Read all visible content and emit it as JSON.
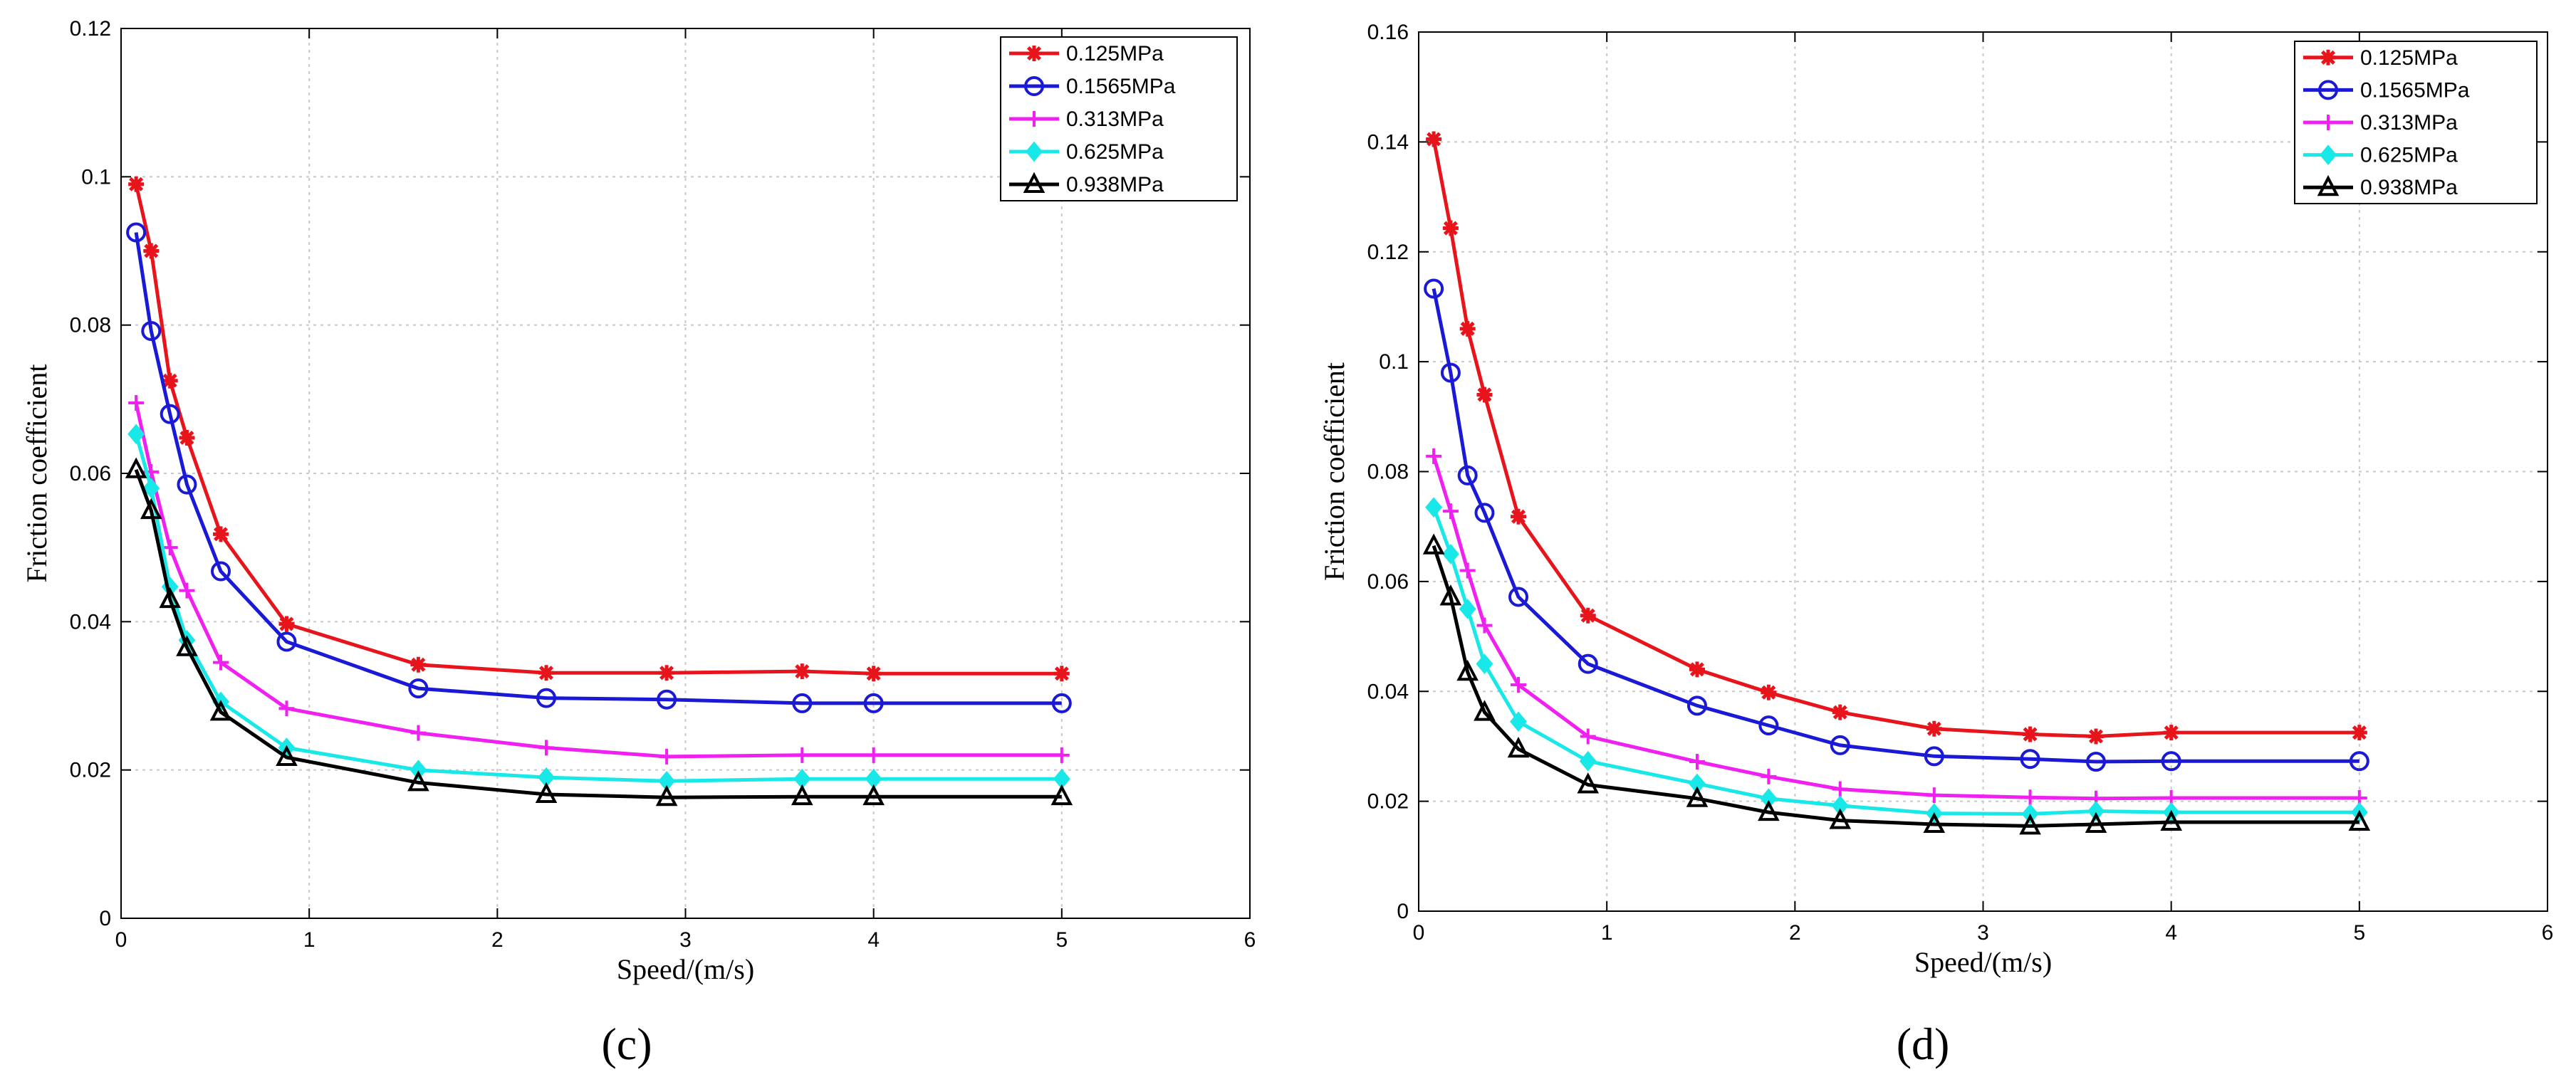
{
  "chart_data": [
    {
      "type": "line",
      "panel_label": "(c)",
      "xlabel": "Speed/(m/s)",
      "ylabel": "Friction coefficient",
      "xlim": [
        0,
        6
      ],
      "ylim": [
        0,
        0.12
      ],
      "xticks": [
        0,
        1,
        2,
        3,
        4,
        5,
        6
      ],
      "yticks": [
        0,
        0.02,
        0.04,
        0.06,
        0.08,
        0.1,
        0.12
      ],
      "xtick_labels": [
        "0",
        "1",
        "2",
        "3",
        "4",
        "5",
        "6"
      ],
      "ytick_labels": [
        "0",
        "0.02",
        "0.04",
        "0.06",
        "0.08",
        "0.1",
        "0.12"
      ],
      "grid": true,
      "legend_position": "top-right",
      "series": [
        {
          "name": "0.125MPa",
          "color": "#e8141b",
          "marker": "asterisk",
          "x": [
            0.08,
            0.16,
            0.26,
            0.35,
            0.53,
            0.88,
            1.58,
            2.26,
            2.9,
            3.62,
            4.0,
            5.0
          ],
          "values": [
            0.099,
            0.09,
            0.0725,
            0.0648,
            0.0518,
            0.0397,
            0.0342,
            0.0331,
            0.0331,
            0.0333,
            0.033,
            0.033
          ]
        },
        {
          "name": "0.1565MPa",
          "color": "#1a1ad6",
          "marker": "circle",
          "x": [
            0.08,
            0.16,
            0.26,
            0.35,
            0.53,
            0.88,
            1.58,
            2.26,
            2.9,
            3.62,
            4.0,
            5.0
          ],
          "values": [
            0.0925,
            0.0792,
            0.068,
            0.0585,
            0.0468,
            0.0373,
            0.031,
            0.0297,
            0.0295,
            0.029,
            0.029,
            0.029
          ]
        },
        {
          "name": "0.313MPa",
          "color": "#f020f0",
          "marker": "plus",
          "x": [
            0.08,
            0.16,
            0.26,
            0.35,
            0.53,
            0.88,
            1.58,
            2.26,
            2.9,
            3.62,
            4.0,
            5.0
          ],
          "values": [
            0.0695,
            0.0602,
            0.05,
            0.0442,
            0.0345,
            0.0283,
            0.025,
            0.023,
            0.0218,
            0.022,
            0.022,
            0.022
          ]
        },
        {
          "name": "0.625MPa",
          "color": "#18e8e8",
          "marker": "diamond",
          "x": [
            0.08,
            0.16,
            0.26,
            0.35,
            0.53,
            0.88,
            1.58,
            2.26,
            2.9,
            3.62,
            4.0,
            5.0
          ],
          "values": [
            0.0653,
            0.058,
            0.0447,
            0.0375,
            0.0292,
            0.023,
            0.02,
            0.019,
            0.0185,
            0.0188,
            0.0188,
            0.0188
          ]
        },
        {
          "name": "0.938MPa",
          "color": "#000000",
          "marker": "triangle",
          "x": [
            0.08,
            0.16,
            0.26,
            0.35,
            0.53,
            0.88,
            1.58,
            2.26,
            2.9,
            3.62,
            4.0,
            5.0
          ],
          "values": [
            0.0605,
            0.055,
            0.043,
            0.0365,
            0.0278,
            0.0217,
            0.0183,
            0.0167,
            0.0163,
            0.0164,
            0.0164,
            0.0164
          ]
        }
      ]
    },
    {
      "type": "line",
      "panel_label": "(d)",
      "xlabel": "Speed/(m/s)",
      "ylabel": "Friction coefficient",
      "xlim": [
        0,
        6
      ],
      "ylim": [
        0,
        0.16
      ],
      "xticks": [
        0,
        1,
        2,
        3,
        4,
        5,
        6
      ],
      "yticks": [
        0,
        0.02,
        0.04,
        0.06,
        0.08,
        0.1,
        0.12,
        0.14,
        0.16
      ],
      "xtick_labels": [
        "0",
        "1",
        "2",
        "3",
        "4",
        "5",
        "6"
      ],
      "ytick_labels": [
        "0",
        "0.02",
        "0.04",
        "0.06",
        "0.08",
        "0.1",
        "0.12",
        "0.14",
        "0.16"
      ],
      "grid": true,
      "legend_position": "top-right",
      "series": [
        {
          "name": "0.125MPa",
          "color": "#e8141b",
          "marker": "asterisk",
          "x": [
            0.08,
            0.17,
            0.26,
            0.35,
            0.53,
            0.9,
            1.48,
            1.86,
            2.24,
            2.74,
            3.25,
            3.6,
            4.0,
            5.0
          ],
          "values": [
            0.1405,
            0.1243,
            0.106,
            0.094,
            0.0718,
            0.0538,
            0.044,
            0.0398,
            0.0362,
            0.0332,
            0.0322,
            0.0318,
            0.0325,
            0.0325
          ]
        },
        {
          "name": "0.1565MPa",
          "color": "#1a1ad6",
          "marker": "circle",
          "x": [
            0.08,
            0.17,
            0.26,
            0.35,
            0.53,
            0.9,
            1.48,
            1.86,
            2.24,
            2.74,
            3.25,
            3.6,
            4.0,
            5.0
          ],
          "values": [
            0.1133,
            0.098,
            0.0793,
            0.0725,
            0.0572,
            0.045,
            0.0374,
            0.0338,
            0.0302,
            0.0282,
            0.0277,
            0.0272,
            0.0273,
            0.0273
          ]
        },
        {
          "name": "0.313MPa",
          "color": "#f020f0",
          "marker": "plus",
          "x": [
            0.08,
            0.17,
            0.26,
            0.35,
            0.53,
            0.9,
            1.48,
            1.86,
            2.24,
            2.74,
            3.25,
            3.6,
            4.0,
            5.0
          ],
          "values": [
            0.0828,
            0.0728,
            0.062,
            0.052,
            0.0412,
            0.0318,
            0.0272,
            0.0245,
            0.0222,
            0.0211,
            0.0207,
            0.0205,
            0.0206,
            0.0206
          ]
        },
        {
          "name": "0.625MPa",
          "color": "#18e8e8",
          "marker": "diamond",
          "x": [
            0.08,
            0.17,
            0.26,
            0.35,
            0.53,
            0.9,
            1.48,
            1.86,
            2.24,
            2.74,
            3.25,
            3.6,
            4.0,
            5.0
          ],
          "values": [
            0.0735,
            0.065,
            0.055,
            0.045,
            0.0345,
            0.0273,
            0.0232,
            0.0205,
            0.0192,
            0.0178,
            0.0177,
            0.0182,
            0.018,
            0.018
          ]
        },
        {
          "name": "0.938MPa",
          "color": "#000000",
          "marker": "triangle",
          "x": [
            0.08,
            0.17,
            0.26,
            0.35,
            0.53,
            0.9,
            1.48,
            1.86,
            2.24,
            2.74,
            3.25,
            3.6,
            4.0,
            5.0
          ],
          "values": [
            0.0665,
            0.0572,
            0.0435,
            0.0362,
            0.0295,
            0.023,
            0.0205,
            0.018,
            0.0165,
            0.0158,
            0.0155,
            0.0158,
            0.0162,
            0.0162
          ]
        }
      ]
    }
  ]
}
